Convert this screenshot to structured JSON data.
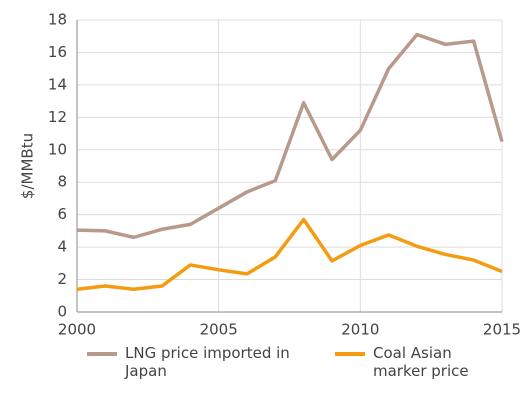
{
  "chart_data": {
    "type": "line",
    "y_label": "$/MMBtu",
    "x": [
      2000,
      2001,
      2002,
      2003,
      2004,
      2005,
      2006,
      2007,
      2008,
      2009,
      2010,
      2011,
      2012,
      2013,
      2014,
      2015
    ],
    "series": [
      {
        "name": "LNG price imported in Japan",
        "color": "#b8998a",
        "values": [
          5.05,
          5.0,
          4.6,
          5.1,
          5.4,
          6.4,
          7.4,
          8.1,
          12.9,
          9.4,
          11.2,
          15.0,
          17.1,
          16.5,
          16.7,
          10.5
        ]
      },
      {
        "name": "Coal Asian marker price",
        "color": "#f39c12",
        "values": [
          1.4,
          1.6,
          1.4,
          1.6,
          2.9,
          2.6,
          2.35,
          3.4,
          5.7,
          3.15,
          4.1,
          4.75,
          4.05,
          3.55,
          3.2,
          2.5
        ]
      }
    ],
    "xlim": [
      2000,
      2015
    ],
    "xticks": [
      2000,
      2005,
      2010,
      2015
    ],
    "ylim": [
      0,
      18
    ],
    "yticks": [
      0,
      2,
      4,
      6,
      8,
      10,
      12,
      14,
      16,
      18
    ],
    "grid": true,
    "legend": "bottom"
  }
}
